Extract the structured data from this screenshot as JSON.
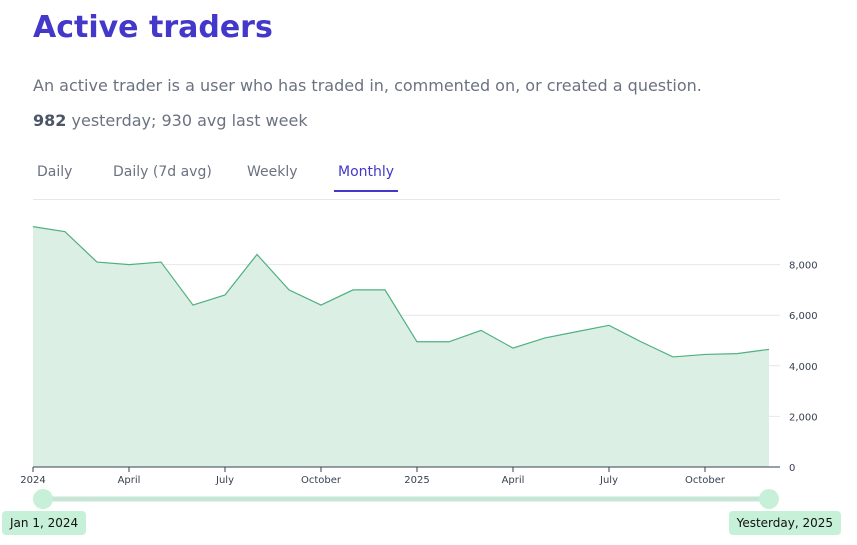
{
  "header": {
    "title": "Active traders",
    "description": "An active trader is a user who has traded in, commented on, or created a question.",
    "stat_value": "982",
    "stat_text": "yesterday; 930 avg last week"
  },
  "tabs": [
    {
      "label": "Daily"
    },
    {
      "label": "Daily (7d avg)"
    },
    {
      "label": "Weekly"
    },
    {
      "label": "Monthly",
      "active": true
    }
  ],
  "chart_data": {
    "type": "area",
    "color": "#4fb07f",
    "fill": "#dcefe5",
    "x": [
      "2024-01",
      "2024-02",
      "2024-03",
      "2024-04",
      "2024-05",
      "2024-06",
      "2024-07",
      "2024-08",
      "2024-09",
      "2024-10",
      "2024-11",
      "2024-12",
      "2025-01",
      "2025-02",
      "2025-03",
      "2025-04",
      "2025-05",
      "2025-06",
      "2025-07",
      "2025-08",
      "2025-09",
      "2025-10",
      "2025-11",
      "2025-12"
    ],
    "values": [
      9500,
      9300,
      8100,
      8000,
      8100,
      6400,
      6800,
      8400,
      7000,
      6400,
      7000,
      7000,
      4950,
      4950,
      5400,
      4700,
      5100,
      5350,
      5600,
      4950,
      4350,
      4450,
      4480,
      4650
    ],
    "xlim": [
      "2024-01",
      "2025-12"
    ],
    "xticks": [
      {
        "value": "2024-01",
        "label": "2024"
      },
      {
        "value": "2024-04",
        "label": "April"
      },
      {
        "value": "2024-07",
        "label": "July"
      },
      {
        "value": "2024-10",
        "label": "October"
      },
      {
        "value": "2025-01",
        "label": "2025"
      },
      {
        "value": "2025-04",
        "label": "April"
      },
      {
        "value": "2025-07",
        "label": "July"
      },
      {
        "value": "2025-10",
        "label": "October"
      }
    ],
    "ylim": [
      0,
      10000
    ],
    "yticks": [
      0,
      {
        "value": 2000,
        "label": "2,000"
      },
      {
        "value": 4000,
        "label": "4,000"
      },
      {
        "value": 6000,
        "label": "6,000"
      },
      {
        "value": 8000,
        "label": "8,000"
      }
    ],
    "grid": true
  },
  "slider": {
    "start_label": "Jan 1, 2024",
    "end_label": "Yesterday, 2025"
  }
}
